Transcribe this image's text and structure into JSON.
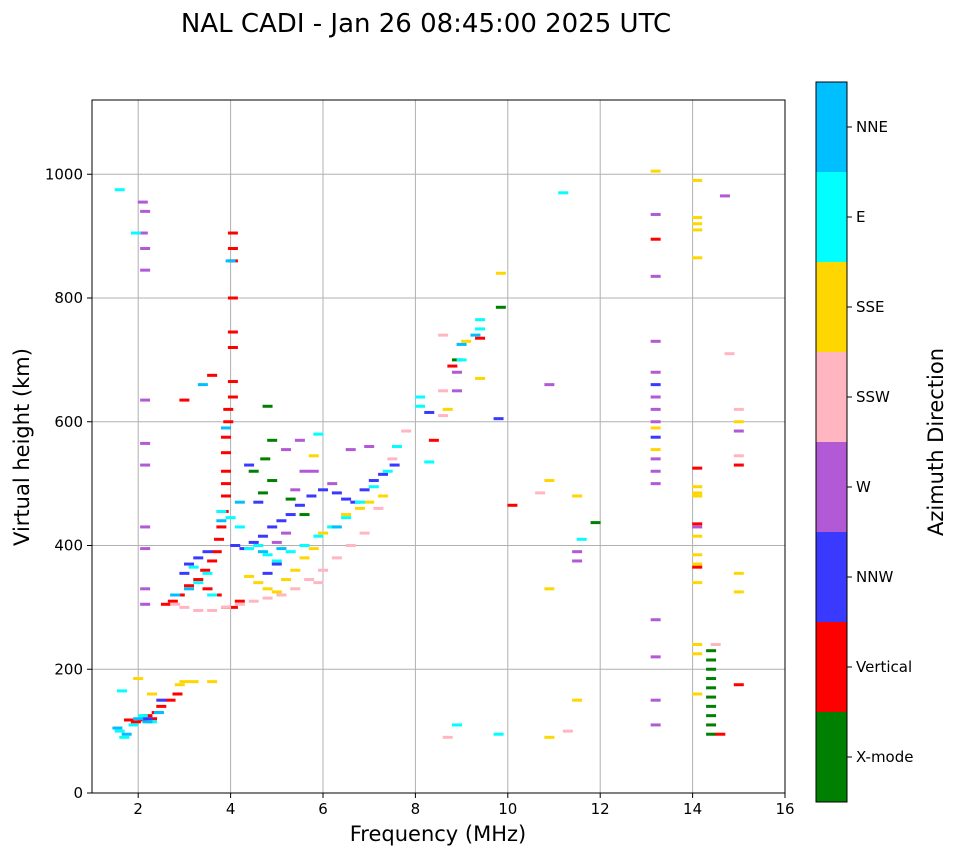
{
  "chart_data": {
    "type": "scatter",
    "title": "NAL CADI - Jan 26 08:45:00 2025 UTC",
    "xlabel": "Frequency (MHz)",
    "ylabel": "Virtual height (km)",
    "xlim": [
      1,
      16
    ],
    "ylim": [
      0,
      1120
    ],
    "xticks": [
      2,
      4,
      6,
      8,
      10,
      12,
      14,
      16
    ],
    "yticks": [
      0,
      200,
      400,
      600,
      800,
      1000
    ],
    "grid": true,
    "colorbar": {
      "title": "Azimuth Direction",
      "categories": [
        {
          "name": "X-mode",
          "color": "#008000"
        },
        {
          "name": "Vertical",
          "color": "#ff0000"
        },
        {
          "name": "NNW",
          "color": "#3a3aff"
        },
        {
          "name": "W",
          "color": "#b25ad6"
        },
        {
          "name": "SSW",
          "color": "#ffb6c1"
        },
        {
          "name": "SSE",
          "color": "#ffd700"
        },
        {
          "name": "E",
          "color": "#00ffff"
        },
        {
          "name": "NNE",
          "color": "#00bfff"
        }
      ]
    },
    "series": [
      {
        "name": "X-mode",
        "points": [
          [
            14.4,
            230
          ],
          [
            14.4,
            215
          ],
          [
            14.4,
            200
          ],
          [
            14.4,
            185
          ],
          [
            14.4,
            170
          ],
          [
            14.4,
            155
          ],
          [
            14.4,
            140
          ],
          [
            14.4,
            125
          ],
          [
            14.4,
            110
          ],
          [
            14.4,
            95
          ],
          [
            11.9,
            437
          ],
          [
            8.9,
            700
          ],
          [
            5.6,
            450
          ],
          [
            5.3,
            475
          ],
          [
            4.9,
            505
          ],
          [
            4.8,
            625
          ],
          [
            4.75,
            540
          ],
          [
            4.7,
            485
          ],
          [
            4.5,
            520
          ],
          [
            9.85,
            785
          ],
          [
            4.9,
            570
          ]
        ]
      },
      {
        "name": "Vertical",
        "points": [
          [
            4.05,
            905
          ],
          [
            4.05,
            880
          ],
          [
            4.05,
            860
          ],
          [
            4.05,
            800
          ],
          [
            4.05,
            745
          ],
          [
            4.05,
            720
          ],
          [
            4.05,
            665
          ],
          [
            4.05,
            640
          ],
          [
            3.95,
            620
          ],
          [
            3.95,
            600
          ],
          [
            3.9,
            575
          ],
          [
            3.9,
            550
          ],
          [
            3.9,
            520
          ],
          [
            3.9,
            500
          ],
          [
            3.9,
            480
          ],
          [
            3.85,
            455
          ],
          [
            3.8,
            430
          ],
          [
            3.75,
            410
          ],
          [
            3.7,
            390
          ],
          [
            3.6,
            375
          ],
          [
            3.45,
            360
          ],
          [
            3.3,
            345
          ],
          [
            3.1,
            335
          ],
          [
            2.9,
            320
          ],
          [
            2.75,
            310
          ],
          [
            2.6,
            305
          ],
          [
            4.2,
            310
          ],
          [
            4.05,
            300
          ],
          [
            3.9,
            300
          ],
          [
            3.7,
            320
          ],
          [
            3.5,
            330
          ],
          [
            3.6,
            675
          ],
          [
            3.0,
            635
          ],
          [
            2.5,
            140
          ],
          [
            2.4,
            130
          ],
          [
            2.3,
            120
          ],
          [
            2.2,
            125
          ],
          [
            2.1,
            118
          ],
          [
            1.95,
            115
          ],
          [
            1.8,
            118
          ],
          [
            2.7,
            150
          ],
          [
            2.85,
            160
          ],
          [
            9.4,
            735
          ],
          [
            10.1,
            465
          ],
          [
            14.1,
            525
          ],
          [
            14.1,
            365
          ],
          [
            14.1,
            435
          ],
          [
            13.2,
            895
          ],
          [
            15.0,
            530
          ],
          [
            15.0,
            175
          ],
          [
            14.6,
            95
          ],
          [
            8.4,
            570
          ],
          [
            8.8,
            690
          ]
        ]
      },
      {
        "name": "NNW",
        "points": [
          [
            4.1,
            400
          ],
          [
            4.3,
            395
          ],
          [
            4.5,
            405
          ],
          [
            4.7,
            415
          ],
          [
            4.9,
            430
          ],
          [
            5.1,
            440
          ],
          [
            5.3,
            450
          ],
          [
            5.5,
            465
          ],
          [
            5.75,
            480
          ],
          [
            6.0,
            490
          ],
          [
            6.3,
            485
          ],
          [
            6.5,
            475
          ],
          [
            6.7,
            470
          ],
          [
            6.9,
            490
          ],
          [
            7.1,
            505
          ],
          [
            7.3,
            515
          ],
          [
            7.55,
            530
          ],
          [
            4.4,
            530
          ],
          [
            4.6,
            470
          ],
          [
            5.0,
            370
          ],
          [
            4.8,
            355
          ],
          [
            3.5,
            390
          ],
          [
            3.3,
            380
          ],
          [
            3.1,
            370
          ],
          [
            3.0,
            355
          ],
          [
            9.8,
            605
          ],
          [
            13.2,
            660
          ],
          [
            13.2,
            575
          ],
          [
            8.3,
            615
          ],
          [
            2.5,
            150
          ],
          [
            2.2,
            120
          ]
        ]
      },
      {
        "name": "W",
        "points": [
          [
            13.2,
            935
          ],
          [
            13.2,
            835
          ],
          [
            13.2,
            730
          ],
          [
            13.2,
            680
          ],
          [
            13.2,
            640
          ],
          [
            13.2,
            620
          ],
          [
            13.2,
            600
          ],
          [
            13.2,
            540
          ],
          [
            13.2,
            520
          ],
          [
            13.2,
            500
          ],
          [
            13.2,
            280
          ],
          [
            13.2,
            220
          ],
          [
            13.2,
            150
          ],
          [
            13.2,
            110
          ],
          [
            14.7,
            965
          ],
          [
            15.0,
            585
          ],
          [
            14.1,
            430
          ],
          [
            11.5,
            390
          ],
          [
            11.5,
            375
          ],
          [
            10.9,
            660
          ],
          [
            8.9,
            680
          ],
          [
            8.9,
            650
          ],
          [
            5.4,
            490
          ],
          [
            5.6,
            520
          ],
          [
            5.8,
            520
          ],
          [
            6.2,
            500
          ],
          [
            6.6,
            555
          ],
          [
            7.0,
            560
          ],
          [
            5.2,
            555
          ],
          [
            5.5,
            570
          ],
          [
            2.1,
            955
          ],
          [
            2.1,
            905
          ],
          [
            2.15,
            940
          ],
          [
            2.15,
            880
          ],
          [
            2.15,
            845
          ],
          [
            2.15,
            635
          ],
          [
            2.15,
            565
          ],
          [
            2.15,
            530
          ],
          [
            2.15,
            430
          ],
          [
            2.15,
            395
          ],
          [
            2.15,
            330
          ],
          [
            2.15,
            305
          ],
          [
            5.2,
            420
          ],
          [
            5.0,
            405
          ]
        ]
      },
      {
        "name": "SSW",
        "points": [
          [
            3.3,
            295
          ],
          [
            3.6,
            295
          ],
          [
            3.9,
            300
          ],
          [
            4.2,
            305
          ],
          [
            4.5,
            310
          ],
          [
            4.8,
            315
          ],
          [
            5.1,
            320
          ],
          [
            5.4,
            330
          ],
          [
            5.7,
            345
          ],
          [
            6.0,
            360
          ],
          [
            6.3,
            380
          ],
          [
            6.6,
            400
          ],
          [
            6.9,
            420
          ],
          [
            7.2,
            460
          ],
          [
            7.5,
            540
          ],
          [
            7.8,
            585
          ],
          [
            8.6,
            740
          ],
          [
            8.6,
            650
          ],
          [
            8.6,
            610
          ],
          [
            15.0,
            620
          ],
          [
            15.0,
            545
          ],
          [
            14.8,
            710
          ],
          [
            14.5,
            240
          ],
          [
            8.7,
            90
          ],
          [
            11.3,
            100
          ],
          [
            10.7,
            485
          ],
          [
            3.0,
            300
          ],
          [
            2.8,
            305
          ],
          [
            5.9,
            340
          ]
        ]
      },
      {
        "name": "SSE",
        "points": [
          [
            13.2,
            1005
          ],
          [
            13.2,
            590
          ],
          [
            13.2,
            555
          ],
          [
            14.1,
            990
          ],
          [
            14.1,
            930
          ],
          [
            14.1,
            920
          ],
          [
            14.1,
            910
          ],
          [
            14.1,
            865
          ],
          [
            14.1,
            495
          ],
          [
            14.1,
            485
          ],
          [
            14.1,
            480
          ],
          [
            14.1,
            415
          ],
          [
            14.1,
            385
          ],
          [
            14.1,
            370
          ],
          [
            14.1,
            340
          ],
          [
            14.1,
            240
          ],
          [
            14.1,
            225
          ],
          [
            14.1,
            160
          ],
          [
            15.0,
            600
          ],
          [
            15.0,
            355
          ],
          [
            15.0,
            325
          ],
          [
            11.5,
            150
          ],
          [
            11.5,
            480
          ],
          [
            10.9,
            505
          ],
          [
            10.9,
            330
          ],
          [
            10.9,
            90
          ],
          [
            9.85,
            840
          ],
          [
            9.4,
            670
          ],
          [
            9.1,
            730
          ],
          [
            8.7,
            620
          ],
          [
            3.2,
            180
          ],
          [
            3.0,
            180
          ],
          [
            2.9,
            175
          ],
          [
            3.6,
            180
          ],
          [
            4.4,
            350
          ],
          [
            4.6,
            340
          ],
          [
            4.8,
            330
          ],
          [
            5.0,
            325
          ],
          [
            5.2,
            345
          ],
          [
            5.4,
            360
          ],
          [
            5.6,
            380
          ],
          [
            5.8,
            395
          ],
          [
            6.0,
            420
          ],
          [
            6.2,
            430
          ],
          [
            6.5,
            450
          ],
          [
            6.8,
            460
          ],
          [
            7.0,
            470
          ],
          [
            7.3,
            480
          ],
          [
            5.8,
            545
          ],
          [
            2.0,
            185
          ],
          [
            2.3,
            160
          ]
        ]
      },
      {
        "name": "E",
        "points": [
          [
            11.2,
            970
          ],
          [
            9.4,
            765
          ],
          [
            9.4,
            750
          ],
          [
            8.1,
            640
          ],
          [
            8.3,
            535
          ],
          [
            8.1,
            625
          ],
          [
            9.0,
            700
          ],
          [
            8.9,
            110
          ],
          [
            9.8,
            95
          ],
          [
            11.6,
            410
          ],
          [
            3.8,
            455
          ],
          [
            4.0,
            445
          ],
          [
            4.2,
            430
          ],
          [
            4.4,
            395
          ],
          [
            4.6,
            400
          ],
          [
            4.8,
            385
          ],
          [
            5.0,
            375
          ],
          [
            5.3,
            390
          ],
          [
            5.6,
            400
          ],
          [
            5.9,
            415
          ],
          [
            6.2,
            430
          ],
          [
            6.5,
            445
          ],
          [
            6.8,
            470
          ],
          [
            7.1,
            495
          ],
          [
            7.4,
            520
          ],
          [
            7.6,
            560
          ],
          [
            3.6,
            320
          ],
          [
            3.3,
            340
          ],
          [
            1.6,
            100
          ],
          [
            1.7,
            90
          ],
          [
            1.9,
            110
          ],
          [
            2.1,
            125
          ],
          [
            2.3,
            115
          ],
          [
            1.65,
            165
          ],
          [
            1.6,
            975
          ],
          [
            1.95,
            905
          ],
          [
            3.5,
            355
          ],
          [
            3.2,
            365
          ],
          [
            5.9,
            580
          ]
        ]
      },
      {
        "name": "NNE",
        "points": [
          [
            9.3,
            740
          ],
          [
            9.0,
            725
          ],
          [
            6.3,
            430
          ],
          [
            4.7,
            390
          ],
          [
            5.1,
            395
          ],
          [
            4.0,
            860
          ],
          [
            3.9,
            590
          ],
          [
            3.4,
            660
          ],
          [
            3.1,
            330
          ],
          [
            2.8,
            320
          ],
          [
            1.55,
            105
          ],
          [
            1.75,
            95
          ],
          [
            2.0,
            120
          ],
          [
            2.45,
            130
          ],
          [
            3.8,
            440
          ],
          [
            4.2,
            470
          ],
          [
            2.2,
            115
          ]
        ]
      }
    ]
  }
}
